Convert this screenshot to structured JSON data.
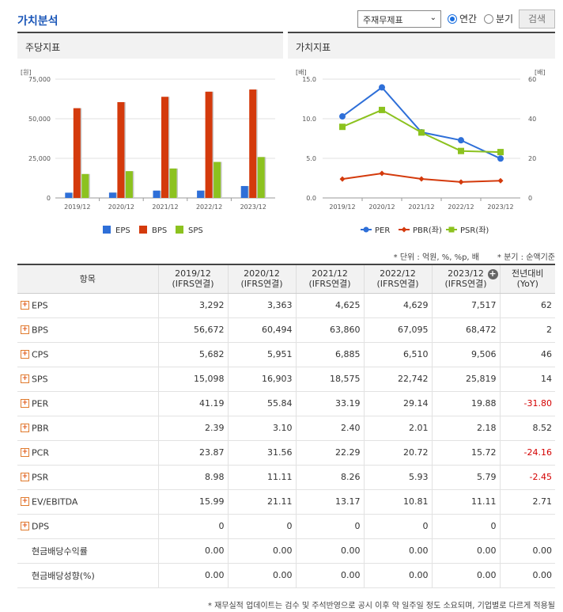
{
  "header": {
    "title": "가치분석",
    "select_value": "주재무제표",
    "radio_annual": "연간",
    "radio_quarter": "분기",
    "search_button": "검색"
  },
  "chart_data": [
    {
      "type": "bar",
      "title": "주당지표",
      "ylabel": "[원]",
      "categories": [
        "2019/12",
        "2020/12",
        "2021/12",
        "2022/12",
        "2023/12"
      ],
      "ylim": [
        0,
        75000
      ],
      "yticks": [
        "0",
        "25,000",
        "50,000",
        "75,000"
      ],
      "series": [
        {
          "name": "EPS",
          "color": "#2e6fd8",
          "values": [
            3292,
            3363,
            4625,
            4629,
            7517
          ]
        },
        {
          "name": "BPS",
          "color": "#d43a0c",
          "values": [
            56672,
            60494,
            63860,
            67095,
            68472
          ]
        },
        {
          "name": "SPS",
          "color": "#8cc21f",
          "values": [
            15098,
            16903,
            18575,
            22742,
            25819
          ]
        }
      ],
      "legend": "bottom"
    },
    {
      "type": "line",
      "title": "가치지표",
      "ylabel_left": "[배]",
      "ylabel_right": "[배]",
      "categories": [
        "2019/12",
        "2020/12",
        "2021/12",
        "2022/12",
        "2023/12"
      ],
      "ylim_left": [
        0,
        15
      ],
      "ylim_right": [
        0,
        60
      ],
      "yticks_left": [
        "0.0",
        "5.0",
        "10.0",
        "15.0"
      ],
      "yticks_right": [
        "0",
        "20",
        "40",
        "60"
      ],
      "series": [
        {
          "name": "PER",
          "axis": "right",
          "marker": "circle",
          "color": "#2e6fd8",
          "values": [
            41.19,
            55.84,
            33.19,
            29.14,
            19.88
          ]
        },
        {
          "name": "PBR(좌)",
          "axis": "left",
          "marker": "diamond",
          "color": "#d43a0c",
          "values": [
            2.39,
            3.1,
            2.4,
            2.01,
            2.18
          ]
        },
        {
          "name": "PSR(좌)",
          "axis": "left",
          "marker": "square",
          "color": "#8cc21f",
          "values": [
            8.98,
            11.11,
            8.26,
            5.93,
            5.79
          ]
        }
      ],
      "legend": "bottom"
    }
  ],
  "notes": {
    "unit": "* 단위 : 억원, %, %p, 배",
    "basis": "* 분기 : 순액기준"
  },
  "table": {
    "header_item": "항목",
    "columns": [
      {
        "period": "2019/12",
        "basis": "(IFRS연결)"
      },
      {
        "period": "2020/12",
        "basis": "(IFRS연결)"
      },
      {
        "period": "2021/12",
        "basis": "(IFRS연결)"
      },
      {
        "period": "2022/12",
        "basis": "(IFRS연결)"
      },
      {
        "period": "2023/12",
        "basis": "(IFRS연결)"
      }
    ],
    "yoy_label": "전년대비",
    "yoy_sub": "(YoY)",
    "rows": [
      {
        "label": "EPS",
        "expand": true,
        "values": [
          "3,292",
          "3,363",
          "4,625",
          "4,629",
          "7,517"
        ],
        "yoy": "62",
        "neg": false
      },
      {
        "label": "BPS",
        "expand": true,
        "values": [
          "56,672",
          "60,494",
          "63,860",
          "67,095",
          "68,472"
        ],
        "yoy": "2",
        "neg": false
      },
      {
        "label": "CPS",
        "expand": true,
        "values": [
          "5,682",
          "5,951",
          "6,885",
          "6,510",
          "9,506"
        ],
        "yoy": "46",
        "neg": false
      },
      {
        "label": "SPS",
        "expand": true,
        "values": [
          "15,098",
          "16,903",
          "18,575",
          "22,742",
          "25,819"
        ],
        "yoy": "14",
        "neg": false
      },
      {
        "label": "PER",
        "expand": true,
        "values": [
          "41.19",
          "55.84",
          "33.19",
          "29.14",
          "19.88"
        ],
        "yoy": "-31.80",
        "neg": true
      },
      {
        "label": "PBR",
        "expand": true,
        "values": [
          "2.39",
          "3.10",
          "2.40",
          "2.01",
          "2.18"
        ],
        "yoy": "8.52",
        "neg": false
      },
      {
        "label": "PCR",
        "expand": true,
        "values": [
          "23.87",
          "31.56",
          "22.29",
          "20.72",
          "15.72"
        ],
        "yoy": "-24.16",
        "neg": true
      },
      {
        "label": "PSR",
        "expand": true,
        "values": [
          "8.98",
          "11.11",
          "8.26",
          "5.93",
          "5.79"
        ],
        "yoy": "-2.45",
        "neg": true
      },
      {
        "label": "EV/EBITDA",
        "expand": true,
        "values": [
          "15.99",
          "21.11",
          "13.17",
          "10.81",
          "11.11"
        ],
        "yoy": "2.71",
        "neg": false
      },
      {
        "label": "DPS",
        "expand": true,
        "values": [
          "0",
          "0",
          "0",
          "0",
          "0"
        ],
        "yoy": "",
        "neg": false
      },
      {
        "label": "현금배당수익률",
        "expand": false,
        "values": [
          "0.00",
          "0.00",
          "0.00",
          "0.00",
          "0.00"
        ],
        "yoy": "0.00",
        "neg": false
      },
      {
        "label": "현금배당성향(%)",
        "expand": false,
        "values": [
          "0.00",
          "0.00",
          "0.00",
          "0.00",
          "0.00"
        ],
        "yoy": "0.00",
        "neg": false
      }
    ]
  },
  "footnote": "* 재무실적 업데이트는 검수 및 주석반영으로 공시 이후 약 일주일 정도 소요되며, 기업별로 다르게 적용될"
}
